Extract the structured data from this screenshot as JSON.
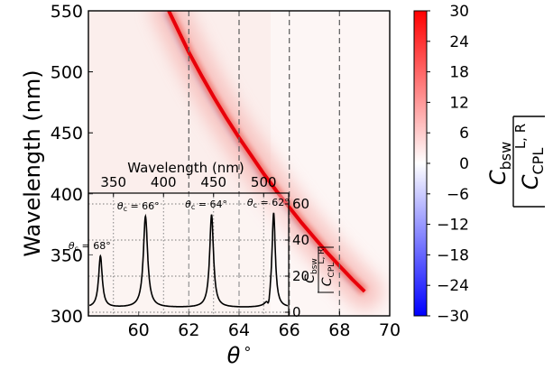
{
  "chart_data": [
    {
      "type": "heatmap",
      "title": "",
      "xlabel": "θ",
      "xlabel_suffix": "°",
      "ylabel": "Wavelength (nm)",
      "xlim": [
        58,
        70
      ],
      "ylim": [
        300,
        550
      ],
      "xticks": [
        60,
        62,
        64,
        66,
        68,
        70
      ],
      "yticks": [
        300,
        350,
        400,
        450,
        500,
        550
      ],
      "grid": false,
      "reference_lines": [
        {
          "axis": "x",
          "value": 62,
          "style": "dashed"
        },
        {
          "axis": "x",
          "value": 64,
          "style": "dashed"
        },
        {
          "axis": "x",
          "value": 66,
          "style": "dashed"
        },
        {
          "axis": "x",
          "value": 68,
          "style": "dashed"
        }
      ],
      "ridge": {
        "description_free": true,
        "x": [
          61.2,
          61.6,
          62.0,
          62.5,
          63.0,
          63.5,
          64.0,
          64.5,
          65.0,
          65.5,
          66.0,
          66.5,
          67.0,
          67.5,
          68.0,
          68.5,
          69.0
        ],
        "y": [
          550,
          533,
          516,
          497,
          479,
          462,
          446,
          431,
          416,
          402,
          389,
          376,
          364,
          352,
          341,
          330,
          320
        ],
        "peak_value": 30
      },
      "colorbar": {
        "label_text": "C",
        "label_subscript": "bsw",
        "denominator_text": "C",
        "denominator_subscript": "CPL",
        "denominator_superscript": "L, R",
        "range": [
          -30,
          30
        ],
        "ticks": [
          "30",
          "24",
          "18",
          "12",
          "6",
          "0",
          "−6",
          "−12",
          "−18",
          "−24",
          "−30"
        ],
        "tick_values": [
          30,
          24,
          18,
          12,
          6,
          0,
          -6,
          -12,
          -18,
          -24,
          -30
        ],
        "colors": {
          "low": "#0000ff",
          "mid": "#ffffff",
          "high": "#ff0000"
        }
      }
    },
    {
      "type": "line",
      "inset": true,
      "title": "Wavelength (nm)",
      "xlabel": "",
      "xlim": [
        325,
        525
      ],
      "ylim": [
        -2,
        66
      ],
      "xticks": [
        350,
        400,
        450,
        500
      ],
      "xtick_labels": [
        "350",
        "400",
        "450",
        "500"
      ],
      "xticks_position": "top",
      "yticks": [
        0,
        20,
        40,
        60
      ],
      "yticks_position": "right",
      "ylabel_text": "C",
      "ylabel_subscript": "bsw",
      "ylabel_denominator": "C",
      "ylabel_denominator_subscript": "CPL",
      "ylabel_denominator_superscript": "L, R",
      "grid": true,
      "grid_style": "dotted",
      "series": [
        {
          "peaks": [
            {
              "x": 337,
              "height": 31,
              "width": 2.2,
              "annotation": "θc = 68°",
              "label": "θ",
              "label_sub": "c",
              "label_value": " = 68°"
            },
            {
              "x": 382,
              "height": 53,
              "width": 2.6,
              "annotation": "θc = 66°",
              "label": "θ",
              "label_sub": "c",
              "label_value": " = 66°"
            },
            {
              "x": 448,
              "height": 54,
              "width": 2.3,
              "annotation": "θc = 64°",
              "label": "θ",
              "label_sub": "c",
              "label_value": " = 64°"
            },
            {
              "x": 510,
              "height": 55,
              "width": 2.0,
              "annotation": "θc = 62°",
              "label": "θ",
              "label_sub": "c",
              "label_value": " = 62°"
            }
          ],
          "baseline": 2.5,
          "dip": {
            "x": 505,
            "value": -1.5
          }
        }
      ]
    }
  ]
}
